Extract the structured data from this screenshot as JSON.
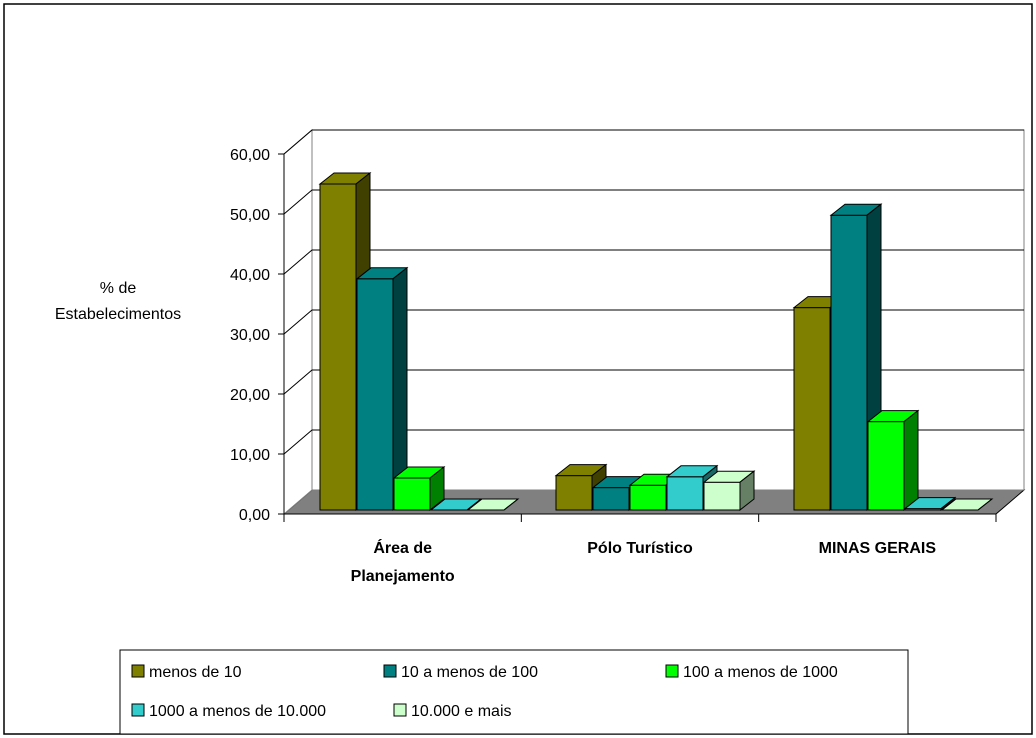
{
  "chart_data": {
    "type": "bar",
    "title": "",
    "xlabel": "",
    "ylabel_lines": [
      "% de",
      "Estabelecimentos"
    ],
    "ylim": [
      0,
      60
    ],
    "yticks": [
      "0,00",
      "10,00",
      "20,00",
      "30,00",
      "40,00",
      "50,00",
      "60,00"
    ],
    "categories": [
      [
        "Área de",
        "Planejamento"
      ],
      [
        "Pólo Turístico"
      ],
      [
        "MINAS GERAIS"
      ]
    ],
    "series": [
      {
        "name": "menos de 10",
        "color": "#808000",
        "values": [
          55.0,
          6.4,
          34.4
        ]
      },
      {
        "name": "10 a menos de 100",
        "color": "#008080",
        "values": [
          39.2,
          4.4,
          49.8
        ]
      },
      {
        "name": "100 a menos de 1000",
        "color": "#00FF00",
        "values": [
          6.0,
          4.8,
          15.4
        ]
      },
      {
        "name": "1000 a menos de 10.000",
        "color": "#33CCCC",
        "values": [
          0.0,
          6.2,
          0.9
        ]
      },
      {
        "name": "10.000 e mais",
        "color": "#CCFFCC",
        "values": [
          0.0,
          5.3,
          0.0
        ]
      }
    ],
    "grid": true,
    "legend_position": "bottom"
  }
}
